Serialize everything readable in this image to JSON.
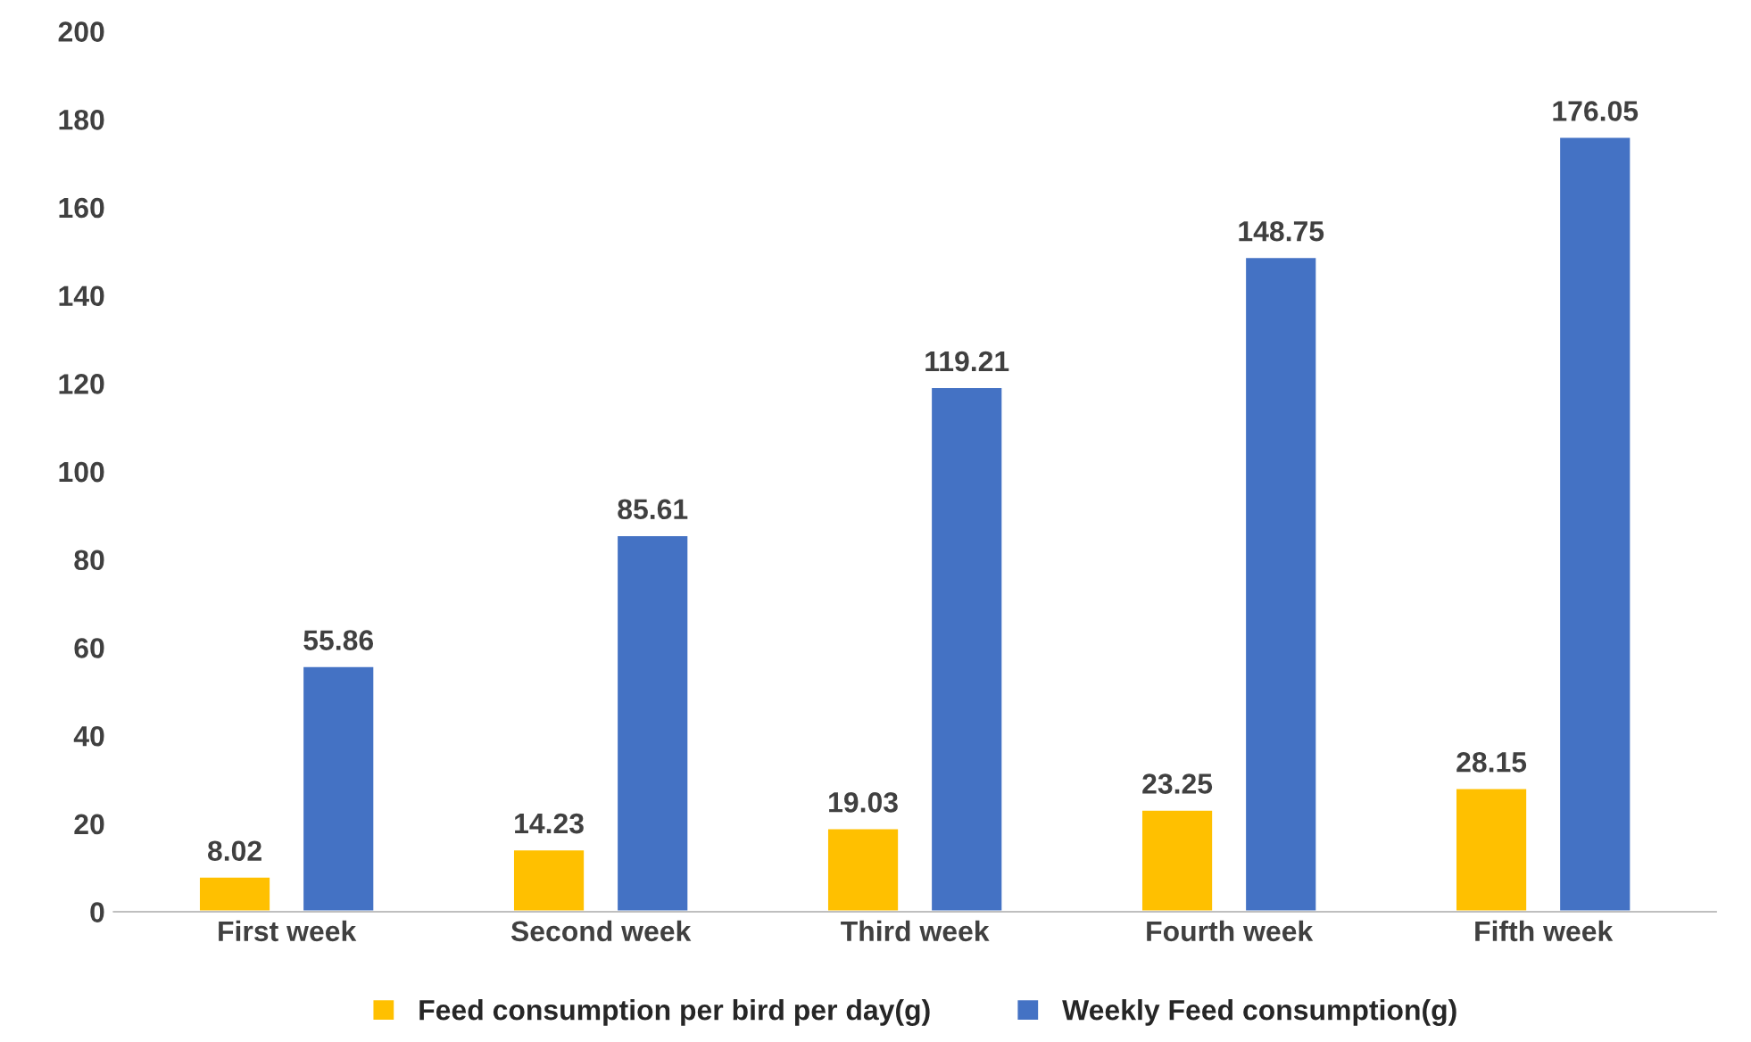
{
  "chart_data": {
    "type": "bar",
    "categories": [
      "First week",
      "Second week",
      "Third week",
      "Fourth week",
      "Fifth week"
    ],
    "series": [
      {
        "name": "Feed consumption per bird per day(g)",
        "color": "#ffc000",
        "values": [
          8.02,
          14.23,
          19.03,
          23.25,
          28.15
        ]
      },
      {
        "name": "Weekly Feed consumption(g)",
        "color": "#4472c4",
        "values": [
          55.86,
          85.61,
          119.21,
          148.75,
          176.05
        ]
      }
    ],
    "ylim": [
      0,
      200
    ],
    "yticks": [
      0,
      20,
      40,
      60,
      80,
      100,
      120,
      140,
      160,
      180,
      200
    ],
    "data_labels": true,
    "legend": "bottom",
    "grid": false
  }
}
